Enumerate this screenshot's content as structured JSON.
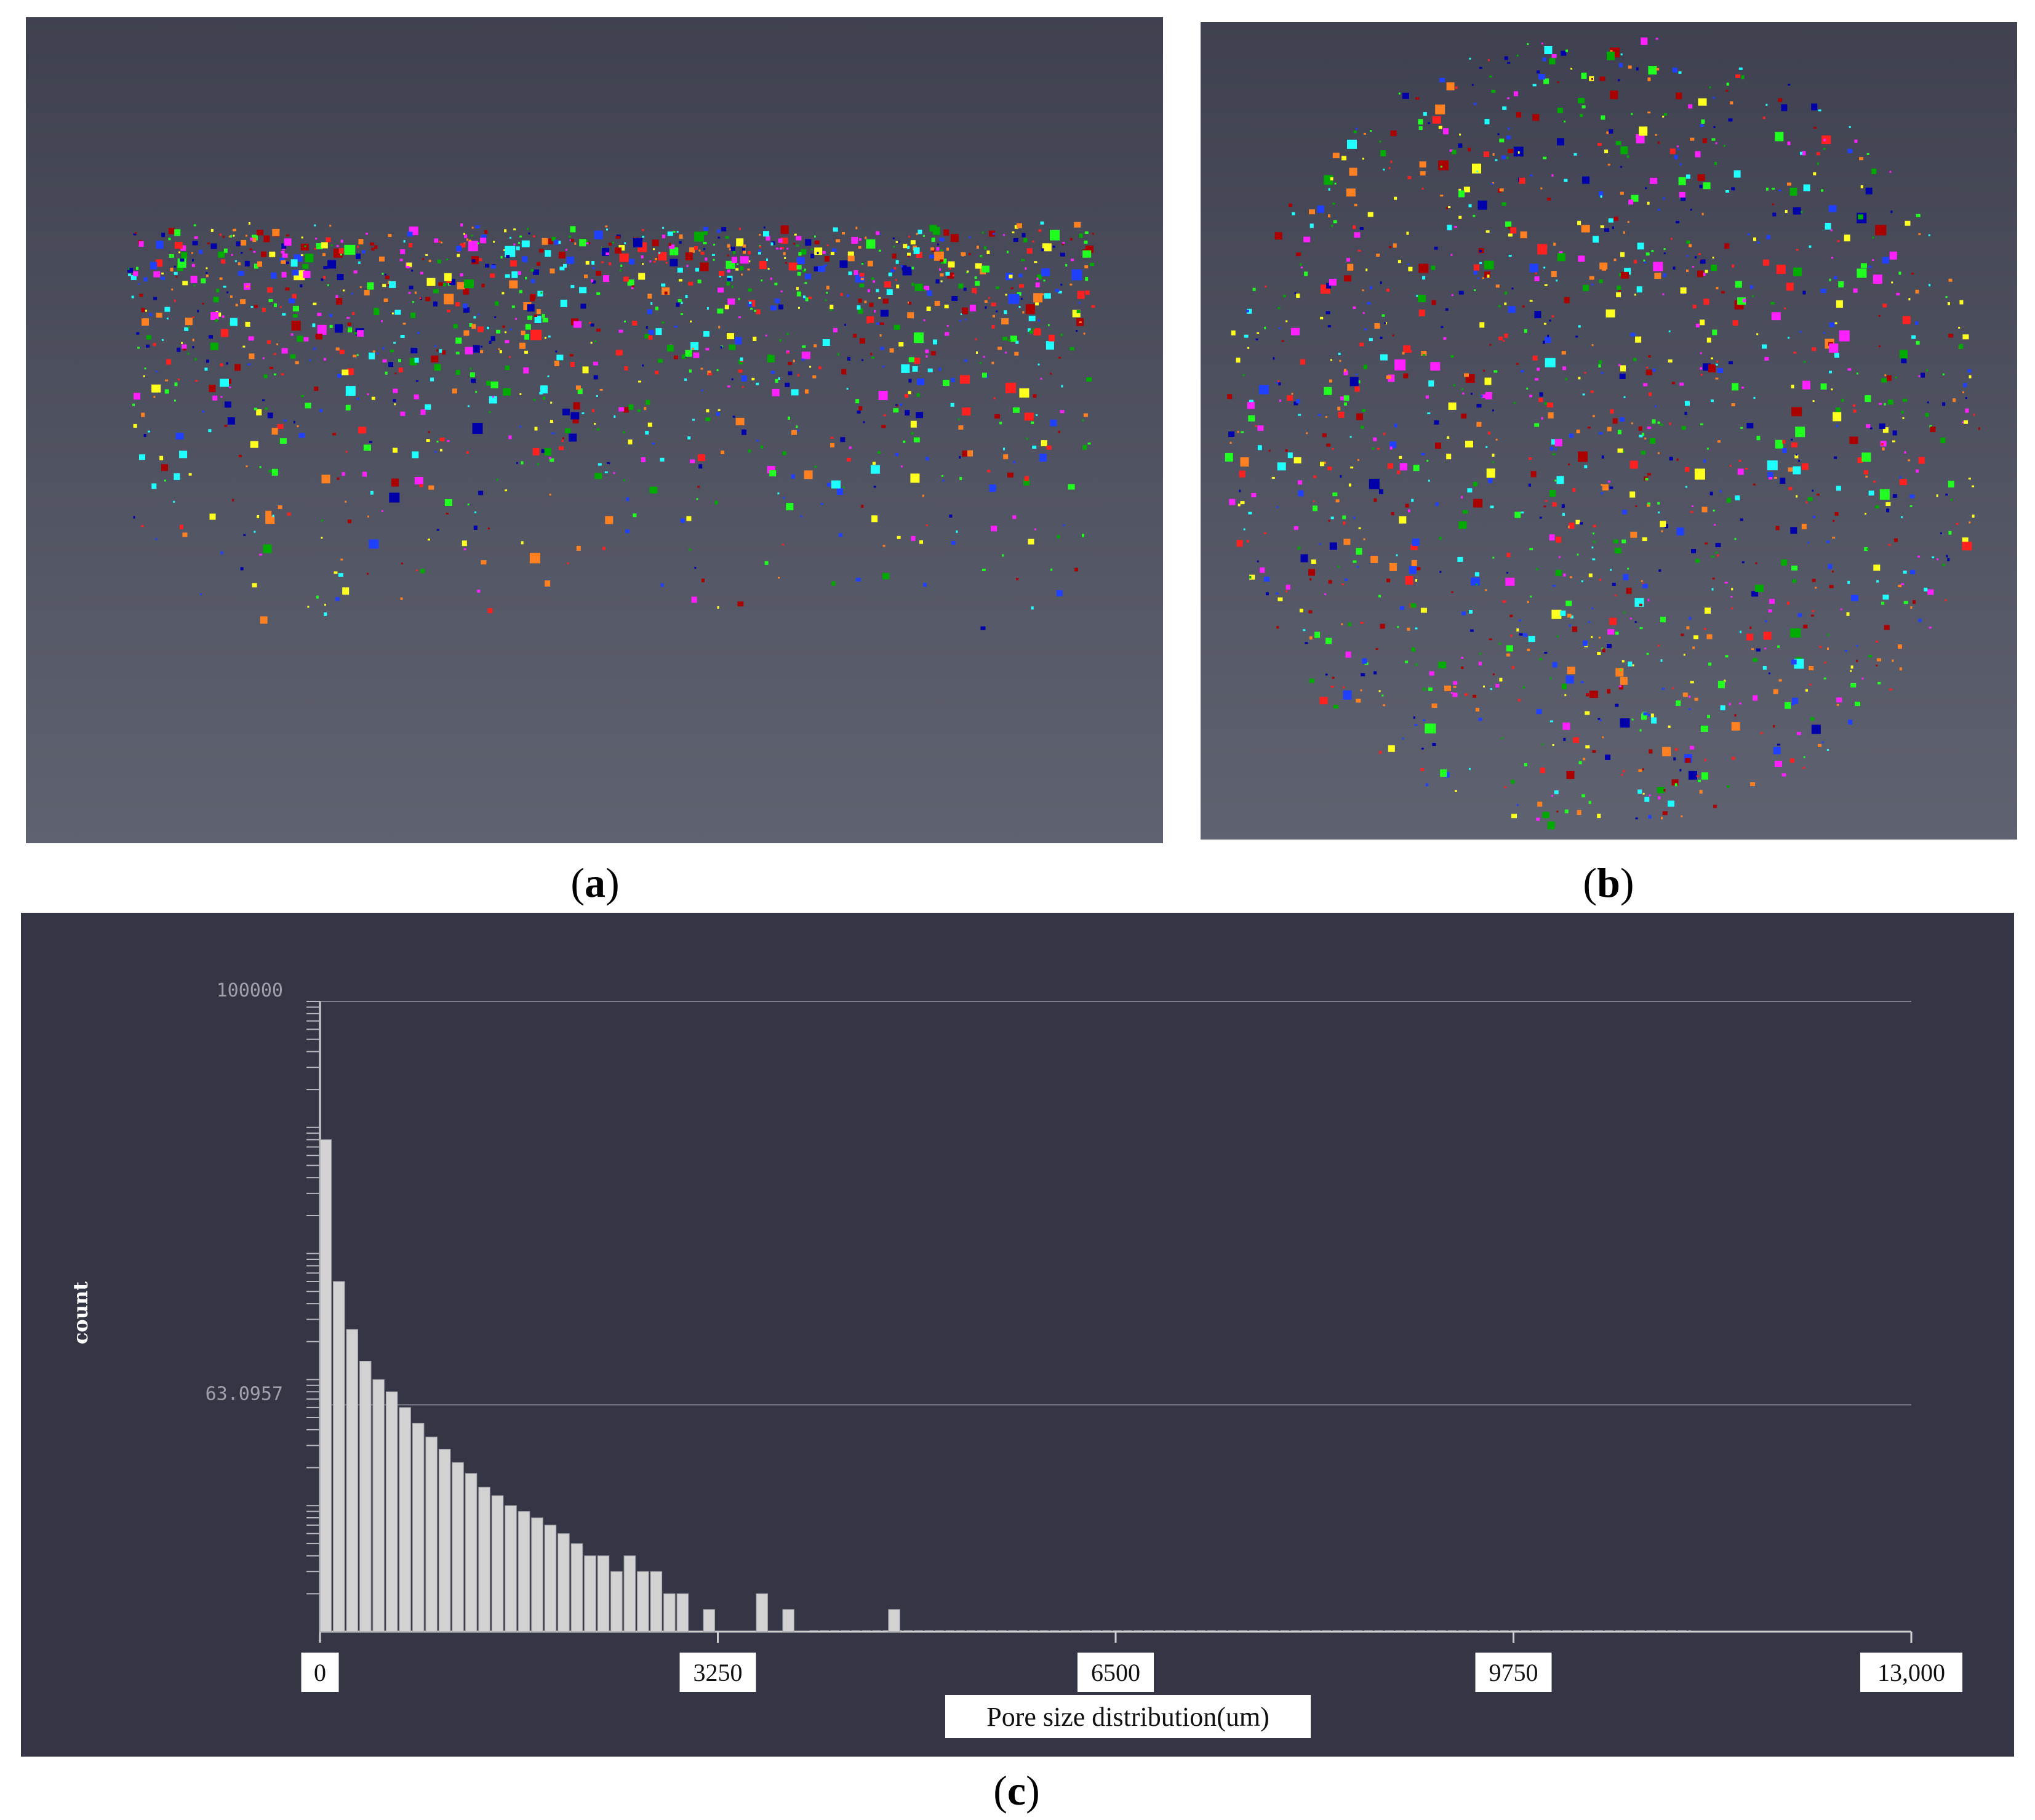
{
  "captions": {
    "a": "a",
    "b": "b",
    "c": "c"
  },
  "panels": {
    "a": {
      "background": [
        "#3f4150",
        "#5f6270"
      ],
      "content": "3D pore rendering, side view"
    },
    "b": {
      "background": [
        "#3f4150",
        "#5f6270"
      ],
      "content": "3D pore rendering, top view"
    }
  },
  "pore_colors": [
    "#ff2020",
    "#2040ff",
    "#20ff20",
    "#ffff20",
    "#20ffff",
    "#ff20ff",
    "#ff8020",
    "#0000aa",
    "#aa0000",
    "#00aa00"
  ],
  "chart_data": {
    "type": "bar",
    "title": "",
    "xlabel": "Pore size distribution(um)",
    "ylabel": "count",
    "xlim": [
      0,
      13000
    ],
    "ylim": [
      1,
      100000
    ],
    "y_scale": "log",
    "x_ticks": [
      "0",
      "3250",
      "6500",
      "9750",
      "13,000"
    ],
    "x_tick_values": [
      0,
      3250,
      6500,
      9750,
      13000
    ],
    "y_ticks": [
      "100000",
      "63.0957"
    ],
    "y_tick_values": [
      100000,
      63.0957
    ],
    "grid": "horizontal",
    "bar_color": "#d2d2d2",
    "bin_width": 108,
    "bin_starts": [
      0,
      108,
      216,
      324,
      432,
      540,
      648,
      756,
      864,
      972,
      1080,
      1188,
      1296,
      1404,
      1512,
      1620,
      1728,
      1836,
      1944,
      2052,
      2160,
      2268,
      2376,
      2484,
      2592,
      2700,
      2808,
      2916,
      3132,
      3564,
      3780,
      4644
    ],
    "values": [
      8000,
      600,
      250,
      140,
      100,
      80,
      60,
      45,
      35,
      28,
      22,
      18,
      14,
      12,
      10,
      9,
      8,
      7,
      6,
      5,
      4,
      4,
      3,
      4,
      3,
      3,
      2,
      2,
      1.5,
      2,
      1.5,
      1.5
    ]
  }
}
